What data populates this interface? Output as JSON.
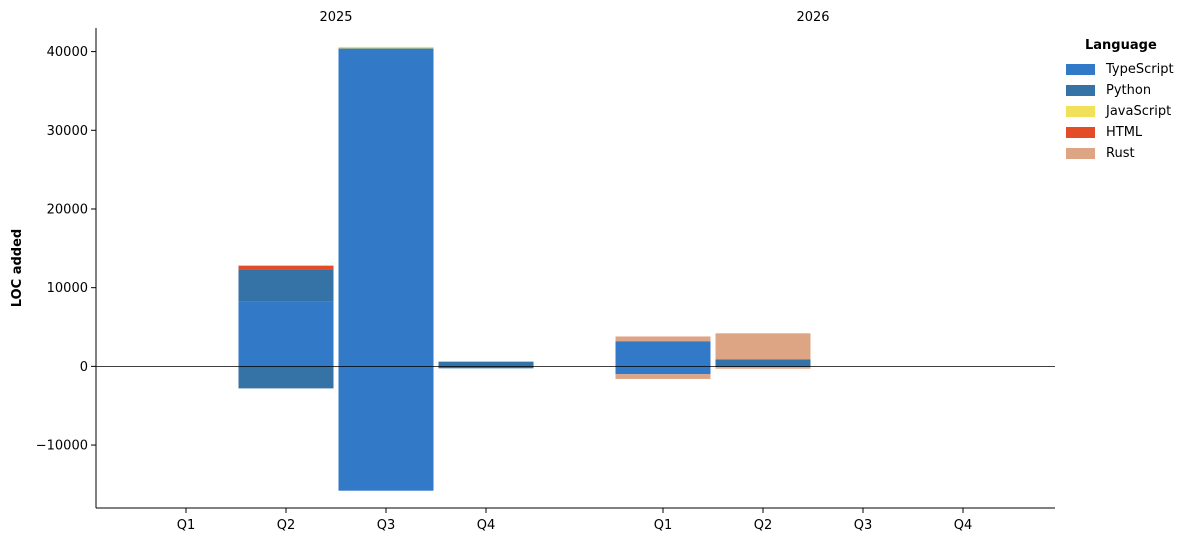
{
  "chart_data": {
    "type": "bar",
    "stacked": true,
    "ylabel": "LOC added",
    "ylim": [
      -18000,
      43000
    ],
    "yticks": [
      -10000,
      0,
      10000,
      20000,
      30000,
      40000
    ],
    "ytick_labels": [
      "−10000",
      "0",
      "10000",
      "20000",
      "30000",
      "40000"
    ],
    "groups": [
      "2025",
      "2026"
    ],
    "categories": [
      "Q1",
      "Q2",
      "Q3",
      "Q4"
    ],
    "legend": {
      "title": "Language",
      "placement": "top-right outside"
    },
    "series": [
      {
        "name": "TypeScript",
        "color": "#3279C8",
        "values": [
          [
            0,
            8200,
            40400,
            0
          ],
          [
            3200,
            0,
            0,
            0
          ]
        ],
        "negative": [
          [
            0,
            0,
            -15800,
            0
          ],
          [
            -1000,
            0,
            0,
            0
          ]
        ]
      },
      {
        "name": "Python",
        "color": "#3572A5",
        "values": [
          [
            0,
            4100,
            0,
            600
          ],
          [
            0,
            900,
            0,
            0
          ]
        ],
        "negative": [
          [
            0,
            -2800,
            0,
            -250
          ],
          [
            0,
            -100,
            0,
            0
          ]
        ]
      },
      {
        "name": "JavaScript",
        "color": "#F1E05A",
        "values": [
          [
            40,
            0,
            200,
            0
          ],
          [
            0,
            0,
            0,
            0
          ]
        ],
        "negative": [
          [
            0,
            0,
            0,
            0
          ],
          [
            0,
            0,
            0,
            0
          ]
        ]
      },
      {
        "name": "HTML",
        "color": "#E34C26",
        "values": [
          [
            0,
            500,
            0,
            0
          ],
          [
            0,
            0,
            0,
            0
          ]
        ],
        "negative": [
          [
            0,
            0,
            0,
            0
          ],
          [
            0,
            0,
            0,
            0
          ]
        ]
      },
      {
        "name": "Rust",
        "color": "#DEA584",
        "values": [
          [
            0,
            0,
            0,
            0
          ],
          [
            600,
            3300,
            0,
            0
          ]
        ],
        "negative": [
          [
            0,
            0,
            0,
            0
          ],
          [
            -600,
            -200,
            0,
            0
          ]
        ]
      }
    ]
  }
}
